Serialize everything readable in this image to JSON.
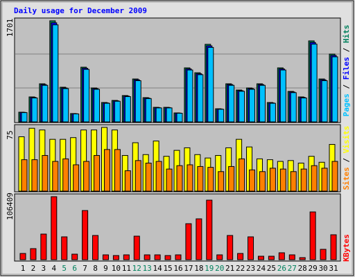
{
  "chart_data": [
    {
      "type": "bar",
      "title": "Daily usage for December 2009",
      "series": [
        {
          "name": "Hits",
          "color": "#00805c",
          "values": [
            163,
            420,
            641,
            1701,
            583,
            140,
            920,
            571,
            326,
            361,
            443,
            722,
            408,
            245,
            245,
            151,
            909,
            827,
            1305,
            221,
            641,
            536,
            571,
            641,
            326,
            909,
            513,
            420,
            1363,
            722,
            1141
          ]
        },
        {
          "name": "Files",
          "color": "#0000ff",
          "values": [
            160,
            412,
            628,
            1667,
            571,
            137,
            902,
            560,
            319,
            354,
            434,
            708,
            400,
            240,
            240,
            148,
            891,
            810,
            1279,
            217,
            628,
            525,
            560,
            628,
            319,
            891,
            503,
            412,
            1336,
            708,
            1118
          ]
        },
        {
          "name": "Pages",
          "color": "#00c0ff",
          "values": [
            156,
            403,
            615,
            1633,
            560,
            134,
            883,
            548,
            313,
            347,
            425,
            693,
            392,
            235,
            235,
            145,
            873,
            794,
            1253,
            212,
            615,
            515,
            548,
            615,
            313,
            873,
            492,
            403,
            1308,
            693,
            1095
          ]
        }
      ],
      "legend_separator": " / ",
      "ylim": [
        0,
        1701
      ],
      "yticks": [
        1701
      ]
    },
    {
      "type": "bar",
      "series": [
        {
          "name": "Visits",
          "color": "#ffff00",
          "values": [
            64,
            74,
            72,
            61,
            61,
            63,
            72,
            72,
            75,
            72,
            42,
            57,
            43,
            59,
            41,
            48,
            51,
            43,
            39,
            42,
            51,
            61,
            52,
            38,
            37,
            35,
            36,
            33,
            41,
            34,
            55
          ]
        },
        {
          "name": "Sites",
          "color": "#ff8000",
          "values": [
            37,
            37,
            42,
            35,
            38,
            31,
            35,
            42,
            49,
            49,
            24,
            36,
            33,
            35,
            26,
            30,
            31,
            29,
            28,
            23,
            29,
            38,
            25,
            23,
            27,
            26,
            23,
            26,
            30,
            27,
            35
          ]
        }
      ],
      "legend_separator": " / ",
      "ylim": [
        0,
        75
      ],
      "yticks": [
        75
      ]
    },
    {
      "type": "bar",
      "series": [
        {
          "name": "KBytes",
          "color": "#ff0000",
          "values": [
            10521,
            18700,
            43260,
            106409,
            38580,
            9350,
            83000,
            40900,
            8180,
            7010,
            8180,
            39750,
            8180,
            8180,
            7010,
            8180,
            60800,
            69000,
            100540,
            8180,
            40900,
            10520,
            38580,
            5850,
            5850,
            11690,
            8180,
            3500,
            80660,
            17530,
            42090
          ]
        }
      ],
      "ylim": [
        0,
        106409
      ],
      "yticks": [
        106409
      ],
      "categories": [
        "1",
        "2",
        "3",
        "4",
        "5",
        "6",
        "7",
        "8",
        "9",
        "10",
        "11",
        "12",
        "13",
        "14",
        "15",
        "16",
        "17",
        "18",
        "19",
        "20",
        "21",
        "22",
        "23",
        "24",
        "25",
        "26",
        "27",
        "28",
        "29",
        "30",
        "31"
      ],
      "category_colors": [
        "#000000",
        "#000000",
        "#000000",
        "#000000",
        "#00805c",
        "#00805c",
        "#000000",
        "#000000",
        "#000000",
        "#000000",
        "#000000",
        "#00805c",
        "#00805c",
        "#000000",
        "#000000",
        "#000000",
        "#000000",
        "#000000",
        "#00805c",
        "#00805c",
        "#000000",
        "#000000",
        "#000000",
        "#000000",
        "#000000",
        "#00805c",
        "#00805c",
        "#000000",
        "#000000",
        "#000000",
        "#000000"
      ]
    }
  ]
}
